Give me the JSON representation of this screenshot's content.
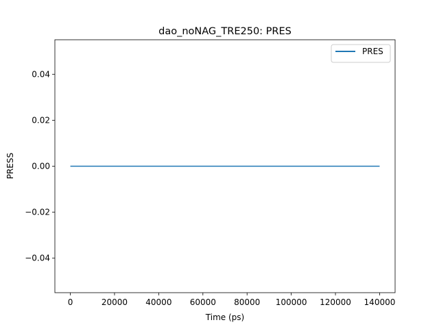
{
  "chart_data": {
    "type": "line",
    "title": "dao_noNAG_TRE250: PRES",
    "xlabel": "Time (ps)",
    "ylabel": "PRESS",
    "xlim": [
      -7000,
      147000
    ],
    "ylim": [
      -0.055,
      0.055
    ],
    "xticks": [
      0,
      20000,
      40000,
      60000,
      80000,
      100000,
      120000,
      140000
    ],
    "xtick_labels": [
      "0",
      "20000",
      "40000",
      "60000",
      "80000",
      "100000",
      "120000",
      "140000"
    ],
    "yticks": [
      -0.04,
      -0.02,
      0.0,
      0.02,
      0.04
    ],
    "ytick_labels": [
      "−0.04",
      "−0.02",
      "0.00",
      "0.02",
      "0.04"
    ],
    "grid": false,
    "legend_position": "top-right",
    "series": [
      {
        "name": "PRES",
        "color": "#1f77b4",
        "x": [
          0,
          140000
        ],
        "y": [
          0,
          0
        ]
      }
    ]
  }
}
